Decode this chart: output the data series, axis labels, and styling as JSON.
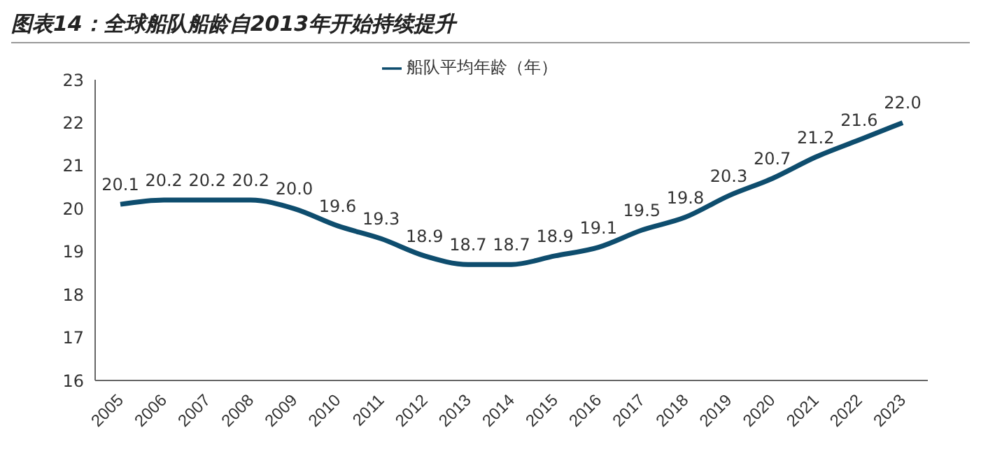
{
  "chart_data": {
    "type": "line",
    "title": "图表14：全球船队船龄自2013年开始持续提升",
    "categories": [
      "2005",
      "2006",
      "2007",
      "2008",
      "2009",
      "2010",
      "2011",
      "2012",
      "2013",
      "2014",
      "2015",
      "2016",
      "2017",
      "2018",
      "2019",
      "2020",
      "2021",
      "2022",
      "2023"
    ],
    "series": [
      {
        "name": "船队平均年龄（年）",
        "color": "#0e4d6e",
        "values": [
          20.1,
          20.2,
          20.2,
          20.2,
          20.0,
          19.6,
          19.3,
          18.9,
          18.7,
          18.7,
          18.9,
          19.1,
          19.5,
          19.8,
          20.3,
          20.7,
          21.2,
          21.6,
          22.0
        ]
      }
    ],
    "ylim": [
      16,
      23
    ],
    "yticks": [
      16,
      17,
      18,
      19,
      20,
      21,
      22,
      23
    ],
    "value_labels": [
      "20.1",
      "20.2",
      "20.2",
      "20.2",
      "20.0",
      "19.6",
      "19.3",
      "18.9",
      "18.7",
      "18.7",
      "18.9",
      "19.1",
      "19.5",
      "19.8",
      "20.3",
      "20.7",
      "21.2",
      "21.6",
      "22.0"
    ],
    "legend": "top",
    "marker": "none",
    "line_style": "solid"
  }
}
